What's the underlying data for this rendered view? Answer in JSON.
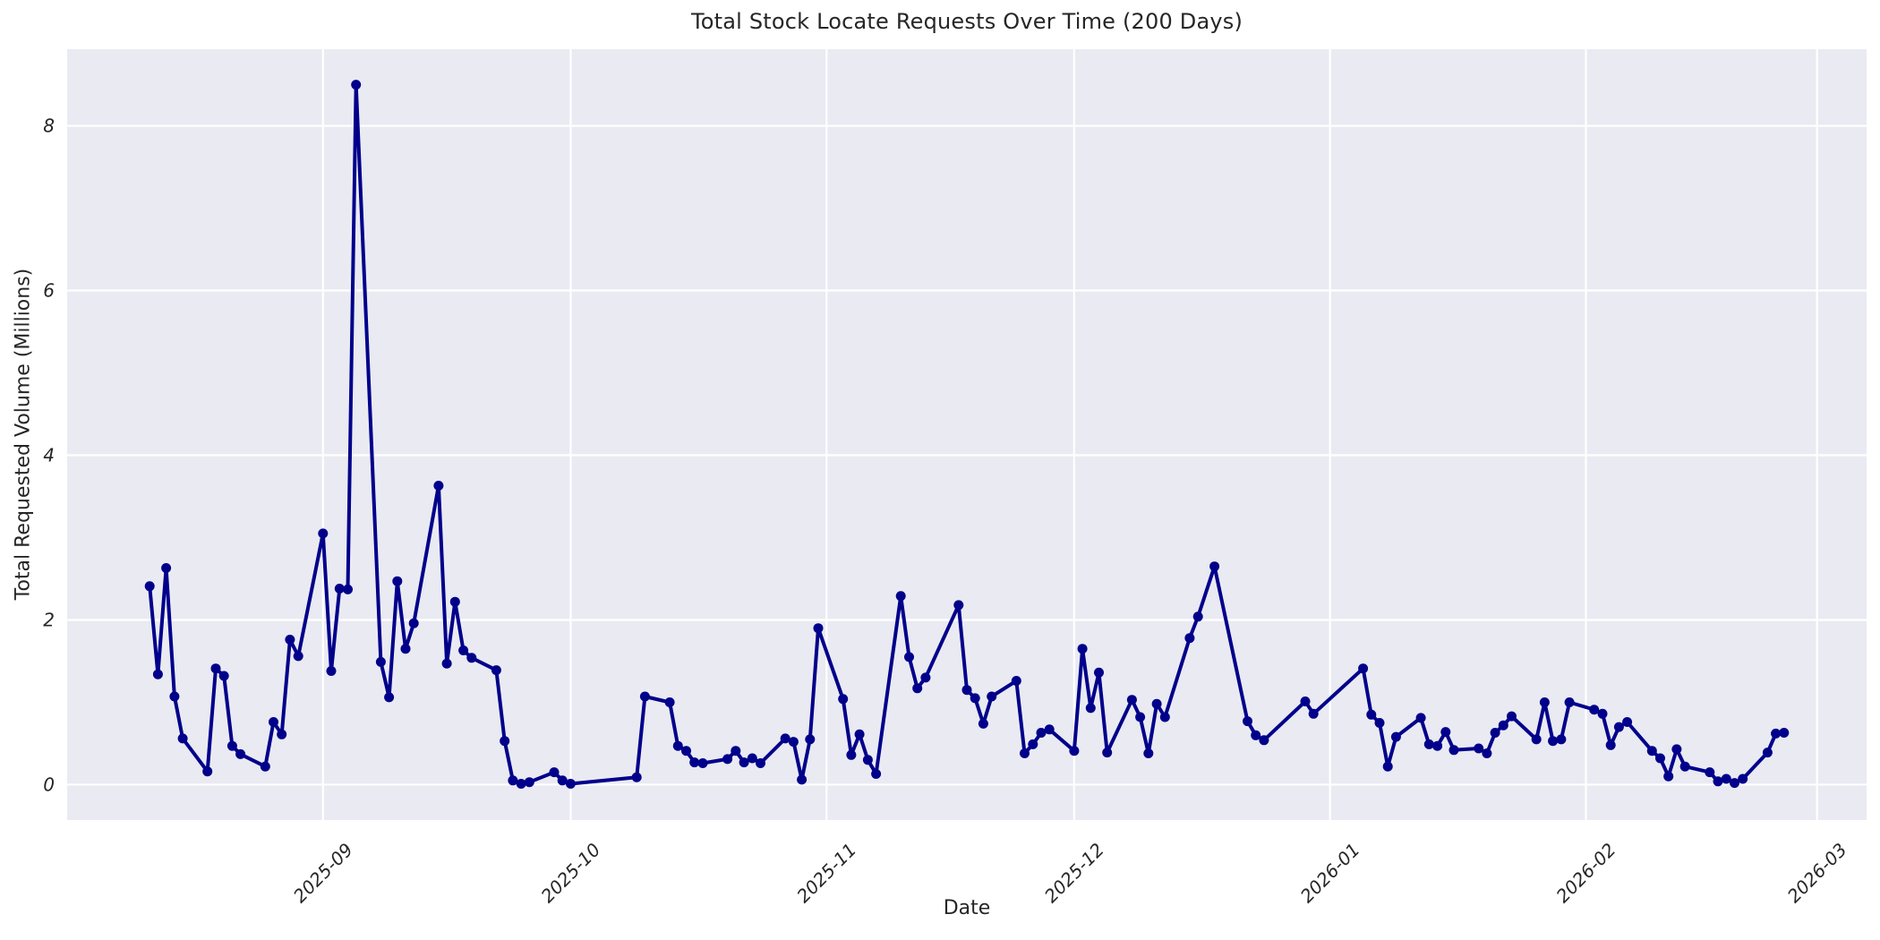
{
  "chart_data": {
    "type": "line",
    "title": "Total Stock Locate Requests Over Time (200 Days)",
    "xlabel": "Date",
    "ylabel": "Total Requested Volume (Millions)",
    "grid": true,
    "legend_position": "none",
    "ylim": [
      -0.43,
      8.93
    ],
    "xlim": [
      "2025-08-01",
      "2026-03-07"
    ],
    "yticks": [
      0,
      2,
      4,
      6,
      8
    ],
    "xticks": [
      {
        "date": "2025-09-01",
        "label": "2025-09"
      },
      {
        "date": "2025-10-01",
        "label": "2025-10"
      },
      {
        "date": "2025-11-01",
        "label": "2025-11"
      },
      {
        "date": "2025-12-01",
        "label": "2025-12"
      },
      {
        "date": "2026-01-01",
        "label": "2026-01"
      },
      {
        "date": "2026-02-01",
        "label": "2026-02"
      },
      {
        "date": "2026-03-01",
        "label": "2026-03"
      }
    ],
    "styles": {
      "axes_background": "#EAEAF2",
      "grid_color": "#FFFFFF",
      "line_color": "#00008B",
      "marker_color": "#00008B",
      "text_color": "#262626",
      "figure_background": "#FFFFFF",
      "line_width": 4,
      "marker_radius": 5.5
    },
    "series": [
      {
        "name": "Total Requested Volume",
        "points": [
          [
            "2025-08-11",
            2.41
          ],
          [
            "2025-08-12",
            1.34
          ],
          [
            "2025-08-13",
            2.63
          ],
          [
            "2025-08-14",
            1.07
          ],
          [
            "2025-08-15",
            0.56
          ],
          [
            "2025-08-18",
            0.16
          ],
          [
            "2025-08-19",
            1.41
          ],
          [
            "2025-08-20",
            1.32
          ],
          [
            "2025-08-21",
            0.47
          ],
          [
            "2025-08-22",
            0.37
          ],
          [
            "2025-08-25",
            0.22
          ],
          [
            "2025-08-26",
            0.76
          ],
          [
            "2025-08-27",
            0.61
          ],
          [
            "2025-08-28",
            1.76
          ],
          [
            "2025-08-29",
            1.56
          ],
          [
            "2025-09-01",
            3.05
          ],
          [
            "2025-09-02",
            1.38
          ],
          [
            "2025-09-03",
            2.38
          ],
          [
            "2025-09-04",
            2.37
          ],
          [
            "2025-09-05",
            8.5
          ],
          [
            "2025-09-08",
            1.49
          ],
          [
            "2025-09-09",
            1.06
          ],
          [
            "2025-09-10",
            2.47
          ],
          [
            "2025-09-11",
            1.65
          ],
          [
            "2025-09-12",
            1.96
          ],
          [
            "2025-09-15",
            3.63
          ],
          [
            "2025-09-16",
            1.47
          ],
          [
            "2025-09-17",
            2.22
          ],
          [
            "2025-09-18",
            1.63
          ],
          [
            "2025-09-19",
            1.54
          ],
          [
            "2025-09-22",
            1.39
          ],
          [
            "2025-09-23",
            0.53
          ],
          [
            "2025-09-24",
            0.05
          ],
          [
            "2025-09-25",
            0.01
          ],
          [
            "2025-09-26",
            0.03
          ],
          [
            "2025-09-29",
            0.15
          ],
          [
            "2025-09-30",
            0.05
          ],
          [
            "2025-10-01",
            0.01
          ],
          [
            "2025-10-09",
            0.09
          ],
          [
            "2025-10-10",
            1.07
          ],
          [
            "2025-10-13",
            1.0
          ],
          [
            "2025-10-14",
            0.47
          ],
          [
            "2025-10-15",
            0.41
          ],
          [
            "2025-10-16",
            0.27
          ],
          [
            "2025-10-17",
            0.26
          ],
          [
            "2025-10-20",
            0.31
          ],
          [
            "2025-10-21",
            0.41
          ],
          [
            "2025-10-22",
            0.27
          ],
          [
            "2025-10-23",
            0.32
          ],
          [
            "2025-10-24",
            0.26
          ],
          [
            "2025-10-27",
            0.56
          ],
          [
            "2025-10-28",
            0.52
          ],
          [
            "2025-10-29",
            0.06
          ],
          [
            "2025-10-30",
            0.55
          ],
          [
            "2025-10-31",
            1.9
          ],
          [
            "2025-11-03",
            1.04
          ],
          [
            "2025-11-04",
            0.36
          ],
          [
            "2025-11-05",
            0.61
          ],
          [
            "2025-11-06",
            0.3
          ],
          [
            "2025-11-07",
            0.13
          ],
          [
            "2025-11-10",
            2.29
          ],
          [
            "2025-11-11",
            1.55
          ],
          [
            "2025-11-12",
            1.17
          ],
          [
            "2025-11-13",
            1.3
          ],
          [
            "2025-11-17",
            2.18
          ],
          [
            "2025-11-18",
            1.15
          ],
          [
            "2025-11-19",
            1.05
          ],
          [
            "2025-11-20",
            0.74
          ],
          [
            "2025-11-21",
            1.07
          ],
          [
            "2025-11-24",
            1.26
          ],
          [
            "2025-11-25",
            0.38
          ],
          [
            "2025-11-26",
            0.49
          ],
          [
            "2025-11-27",
            0.63
          ],
          [
            "2025-11-28",
            0.67
          ],
          [
            "2025-12-01",
            0.41
          ],
          [
            "2025-12-02",
            1.65
          ],
          [
            "2025-12-03",
            0.93
          ],
          [
            "2025-12-04",
            1.36
          ],
          [
            "2025-12-05",
            0.39
          ],
          [
            "2025-12-08",
            1.03
          ],
          [
            "2025-12-09",
            0.82
          ],
          [
            "2025-12-10",
            0.38
          ],
          [
            "2025-12-11",
            0.98
          ],
          [
            "2025-12-12",
            0.82
          ],
          [
            "2025-12-15",
            1.78
          ],
          [
            "2025-12-16",
            2.04
          ],
          [
            "2025-12-18",
            2.65
          ],
          [
            "2025-12-22",
            0.77
          ],
          [
            "2025-12-23",
            0.6
          ],
          [
            "2025-12-24",
            0.54
          ],
          [
            "2025-12-29",
            1.01
          ],
          [
            "2025-12-30",
            0.86
          ],
          [
            "2026-01-05",
            1.41
          ],
          [
            "2026-01-06",
            0.85
          ],
          [
            "2026-01-07",
            0.75
          ],
          [
            "2026-01-08",
            0.22
          ],
          [
            "2026-01-09",
            0.58
          ],
          [
            "2026-01-12",
            0.81
          ],
          [
            "2026-01-13",
            0.49
          ],
          [
            "2026-01-14",
            0.47
          ],
          [
            "2026-01-15",
            0.64
          ],
          [
            "2026-01-16",
            0.42
          ],
          [
            "2026-01-19",
            0.44
          ],
          [
            "2026-01-20",
            0.38
          ],
          [
            "2026-01-21",
            0.63
          ],
          [
            "2026-01-22",
            0.72
          ],
          [
            "2026-01-23",
            0.83
          ],
          [
            "2026-01-26",
            0.55
          ],
          [
            "2026-01-27",
            1.0
          ],
          [
            "2026-01-28",
            0.53
          ],
          [
            "2026-01-29",
            0.55
          ],
          [
            "2026-01-30",
            1.0
          ],
          [
            "2026-02-02",
            0.91
          ],
          [
            "2026-02-03",
            0.86
          ],
          [
            "2026-02-04",
            0.48
          ],
          [
            "2026-02-05",
            0.7
          ],
          [
            "2026-02-06",
            0.76
          ],
          [
            "2026-02-09",
            0.41
          ],
          [
            "2026-02-10",
            0.32
          ],
          [
            "2026-02-11",
            0.1
          ],
          [
            "2026-02-12",
            0.43
          ],
          [
            "2026-02-13",
            0.22
          ],
          [
            "2026-02-16",
            0.15
          ],
          [
            "2026-02-17",
            0.04
          ],
          [
            "2026-02-18",
            0.07
          ],
          [
            "2026-02-19",
            0.02
          ],
          [
            "2026-02-20",
            0.07
          ],
          [
            "2026-02-23",
            0.39
          ],
          [
            "2026-02-24",
            0.62
          ],
          [
            "2026-02-25",
            0.63
          ]
        ]
      }
    ]
  }
}
